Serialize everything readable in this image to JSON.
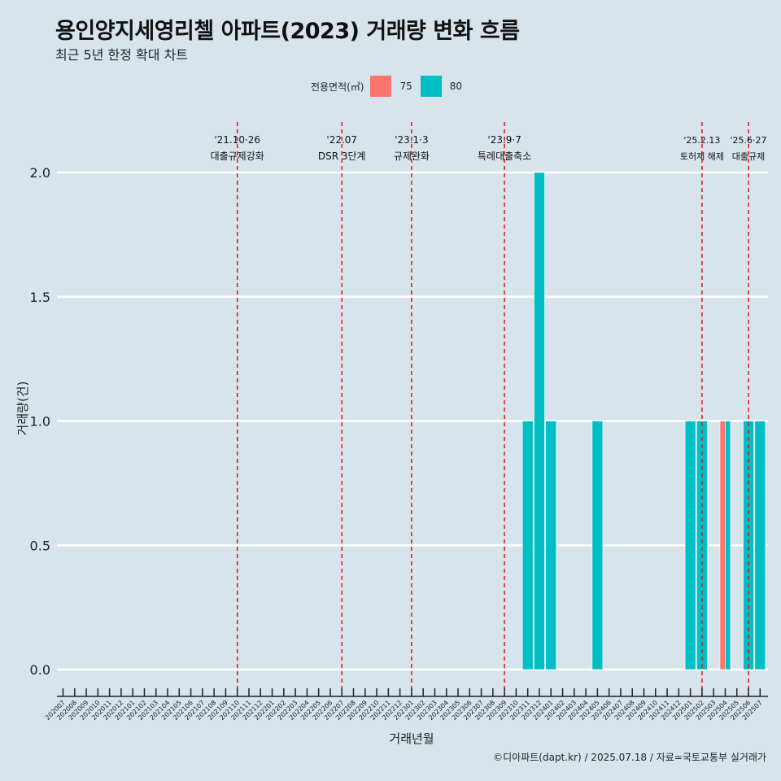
{
  "title": "용인양지세영리첼 아파트(2023) 거래량 변화 흐름",
  "subtitle": "최근 5년 한정 확대 차트",
  "legend": {
    "title": "전용면적(㎡)",
    "items": [
      {
        "label": "75",
        "color": "#f8766d"
      },
      {
        "label": "80",
        "color": "#00bfc4"
      }
    ]
  },
  "footer": "©디아파트(dapt.kr) / 2025.07.18 / 자료=국토교통부 실거래가",
  "chart_data": {
    "type": "bar",
    "title": "용인양지세영리첼 아파트(2023) 거래량 변화 흐름",
    "xlabel": "거래년월",
    "ylabel": "거래량(건)",
    "ylim": [
      0,
      2
    ],
    "yticks": [
      0.0,
      0.5,
      1.0,
      1.5,
      2.0
    ],
    "grid": "horizontal",
    "legend_position": "top",
    "categories": [
      "202007",
      "202008",
      "202009",
      "202010",
      "202011",
      "202012",
      "202101",
      "202102",
      "202103",
      "202104",
      "202105",
      "202106",
      "202107",
      "202108",
      "202109",
      "202110",
      "202111",
      "202112",
      "202201",
      "202202",
      "202203",
      "202204",
      "202205",
      "202206",
      "202207",
      "202208",
      "202209",
      "202210",
      "202211",
      "202212",
      "202301",
      "202302",
      "202303",
      "202304",
      "202305",
      "202306",
      "202307",
      "202308",
      "202309",
      "202310",
      "202311",
      "202312",
      "202401",
      "202402",
      "202403",
      "202404",
      "202405",
      "202406",
      "202407",
      "202408",
      "202409",
      "202410",
      "202411",
      "202412",
      "202501",
      "202502",
      "202503",
      "202504",
      "202505",
      "202506",
      "202507"
    ],
    "bars": [
      {
        "x": "202311",
        "segments": [
          {
            "area": "80",
            "value": 1
          }
        ]
      },
      {
        "x": "202312",
        "segments": [
          {
            "area": "80",
            "value": 2
          }
        ]
      },
      {
        "x": "202401",
        "segments": [
          {
            "area": "80",
            "value": 1
          }
        ]
      },
      {
        "x": "202405",
        "segments": [
          {
            "area": "80",
            "value": 1
          }
        ]
      },
      {
        "x": "202501",
        "segments": [
          {
            "area": "80",
            "value": 1
          }
        ]
      },
      {
        "x": "202502",
        "segments": [
          {
            "area": "80",
            "value": 1
          }
        ]
      },
      {
        "x": "202504",
        "segments": [
          {
            "area": "75",
            "value": 1
          },
          {
            "area": "80",
            "value": 1
          }
        ]
      },
      {
        "x": "202506",
        "segments": [
          {
            "area": "80",
            "value": 1
          }
        ]
      },
      {
        "x": "202507",
        "segments": [
          {
            "area": "80",
            "value": 1
          }
        ]
      }
    ],
    "events": [
      {
        "x": "202110",
        "date": "'21.10·26",
        "label": "대출규제강화"
      },
      {
        "x": "202207",
        "date": "'22.07",
        "label": "DSR 3단계"
      },
      {
        "x": "202301",
        "date": "'23.1·3",
        "label": "규제완화"
      },
      {
        "x": "202309",
        "date": "'23.9·7",
        "label": "특례대출축소"
      },
      {
        "x": "202502",
        "date": "'25.2.13",
        "label": "토허제 해제"
      },
      {
        "x": "202506",
        "date": "'25.6·27",
        "label": "대출규제"
      }
    ]
  }
}
